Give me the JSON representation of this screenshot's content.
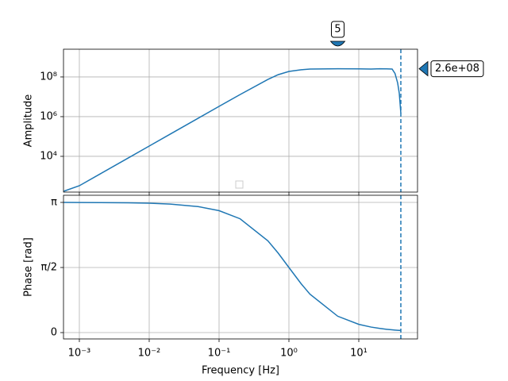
{
  "chart_data": [
    {
      "type": "line",
      "ylabel": "Amplitude",
      "yscale": "log",
      "xscale": "log",
      "grid": true,
      "xlim": [
        0.000593,
        69.3
      ],
      "ylim": [
        158,
        2500000000.0
      ],
      "yticks": [
        {
          "value": 10000,
          "label": "10⁴"
        },
        {
          "value": 1000000,
          "label": "10⁶"
        },
        {
          "value": 100000000,
          "label": "10⁸"
        }
      ],
      "x": [
        0.0006,
        0.001,
        0.002,
        0.005,
        0.01,
        0.02,
        0.05,
        0.1,
        0.2,
        0.5,
        0.7,
        1,
        1.5,
        2,
        5,
        10,
        15,
        20,
        25,
        30,
        33,
        36,
        38,
        40
      ],
      "series": [
        {
          "color": "#1f77b4",
          "values": [
            175,
            330,
            1320,
            8250,
            33000,
            132000,
            825000,
            3300000,
            13000000,
            75000000,
            130000000,
            190000000,
            230000000,
            250000000,
            260000000,
            255000000,
            250000000,
            260000000,
            255000000,
            250000000,
            150000000,
            50000000,
            15000000,
            1500000
          ]
        }
      ],
      "vline": 40,
      "x_marker": {
        "value": 5,
        "label": "5"
      },
      "y_marker": {
        "value": 260000000,
        "label": "2.6e+08"
      }
    },
    {
      "type": "line",
      "ylabel": "Phase [rad]",
      "xlabel": "Frequency [Hz]",
      "xscale": "log",
      "grid": true,
      "xlim": [
        0.000593,
        69.3
      ],
      "ylim": [
        -0.153,
        3.314
      ],
      "xticks": [
        {
          "value": 0.001,
          "label": "10⁻³"
        },
        {
          "value": 0.01,
          "label": "10⁻²"
        },
        {
          "value": 0.1,
          "label": "10⁻¹"
        },
        {
          "value": 1,
          "label": "10⁰"
        },
        {
          "value": 10,
          "label": "10¹"
        }
      ],
      "yticks": [
        0,
        {
          "value": 1.5708,
          "label": "π/2"
        },
        {
          "value": 3.14159,
          "label": "π"
        }
      ],
      "x": [
        0.0006,
        0.001,
        0.002,
        0.005,
        0.01,
        0.02,
        0.05,
        0.1,
        0.2,
        0.5,
        0.7,
        1,
        1.5,
        2,
        5,
        10,
        15,
        20,
        25,
        30,
        33,
        36,
        38,
        40
      ],
      "series": [
        {
          "color": "#1f77b4",
          "values": [
            3.1404,
            3.1396,
            3.1376,
            3.1316,
            3.1216,
            3.1016,
            3.0417,
            2.9423,
            2.7468,
            2.2143,
            1.9201,
            1.5708,
            1.176,
            0.9273,
            0.3948,
            0.1993,
            0.1332,
            0.0999,
            0.08,
            0.0666,
            0.0606,
            0.0555,
            0.0526,
            0.05
          ]
        }
      ],
      "vline": 40
    }
  ]
}
